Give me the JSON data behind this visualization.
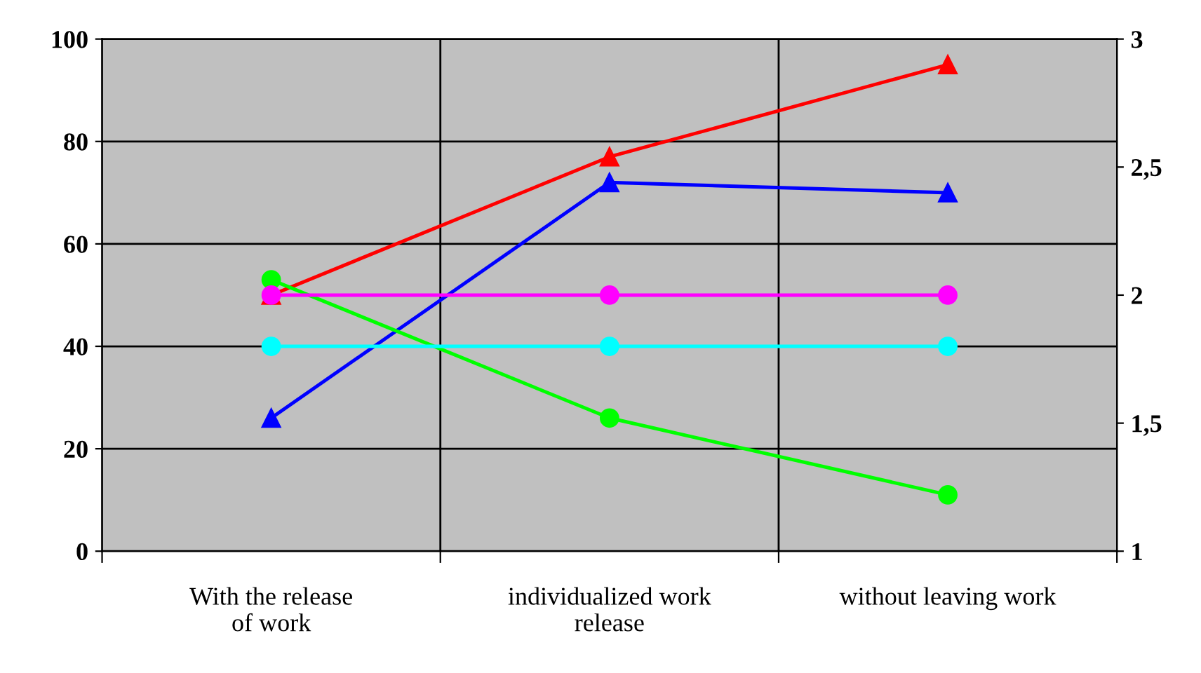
{
  "chart_data": {
    "type": "line",
    "categories": [
      "With the release\nof work",
      "individualized work\nrelease",
      "without leaving work"
    ],
    "ylim": [
      0,
      100
    ],
    "yticks": [
      0,
      20,
      40,
      60,
      80,
      100
    ],
    "y2lim": [
      1,
      3
    ],
    "y2ticks": [
      1,
      {
        "value": 1.5,
        "label": "1,5"
      },
      2,
      {
        "value": 2.5,
        "label": "2,5"
      },
      3
    ],
    "grid": true,
    "series": [
      {
        "color": "#ff0000",
        "values": [
          50,
          77,
          95
        ],
        "marker": "triangle"
      },
      {
        "color": "#0000ff",
        "values": [
          26,
          72,
          70
        ],
        "marker": "triangle"
      },
      {
        "color": "#ff00ff",
        "values": [
          2,
          2,
          2
        ],
        "marker": "circle",
        "axis": "y2"
      },
      {
        "color": "#00ffff",
        "values": [
          1.8,
          1.8,
          1.8
        ],
        "marker": "circle",
        "axis": "y2"
      },
      {
        "color": "#00ff00",
        "values": [
          53,
          26,
          11
        ],
        "marker": "circle"
      }
    ]
  }
}
